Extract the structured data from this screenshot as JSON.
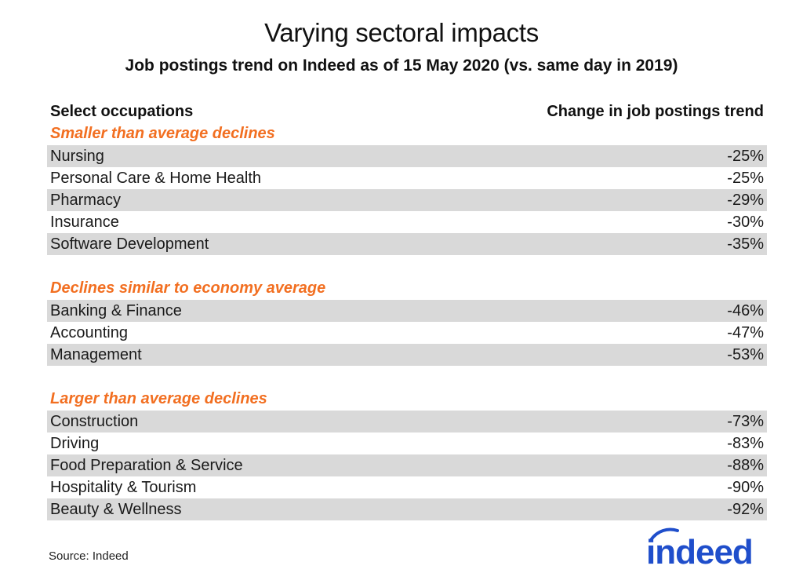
{
  "title": "Varying sectoral impacts",
  "subtitle": "Job postings trend on Indeed as of 15 May 2020 (vs. same day in 2019)",
  "source": "Source: Indeed",
  "logo_text": "indeed",
  "colors": {
    "group_title": "#f26f21",
    "row_shade": "#d9d9d9",
    "logo": "#1f4ecb"
  },
  "chart_data": {
    "type": "table",
    "columns": [
      "Select occupations",
      "Change in job postings trend"
    ],
    "groups": [
      {
        "title": "Smaller than average declines",
        "rows": [
          {
            "label": "Nursing",
            "value": "-25%"
          },
          {
            "label": "Personal Care & Home Health",
            "value": "-25%"
          },
          {
            "label": "Pharmacy",
            "value": "-29%"
          },
          {
            "label": "Insurance",
            "value": "-30%"
          },
          {
            "label": "Software Development",
            "value": "-35%"
          }
        ]
      },
      {
        "title": "Declines similar to economy average",
        "rows": [
          {
            "label": "Banking & Finance",
            "value": "-46%"
          },
          {
            "label": "Accounting",
            "value": "-47%"
          },
          {
            "label": "Management",
            "value": "-53%"
          }
        ]
      },
      {
        "title": "Larger than average declines",
        "rows": [
          {
            "label": "Construction",
            "value": "-73%"
          },
          {
            "label": "Driving",
            "value": "-83%"
          },
          {
            "label": "Food Preparation & Service",
            "value": "-88%"
          },
          {
            "label": "Hospitality & Tourism",
            "value": "-90%"
          },
          {
            "label": "Beauty & Wellness",
            "value": "-92%"
          }
        ]
      }
    ]
  }
}
